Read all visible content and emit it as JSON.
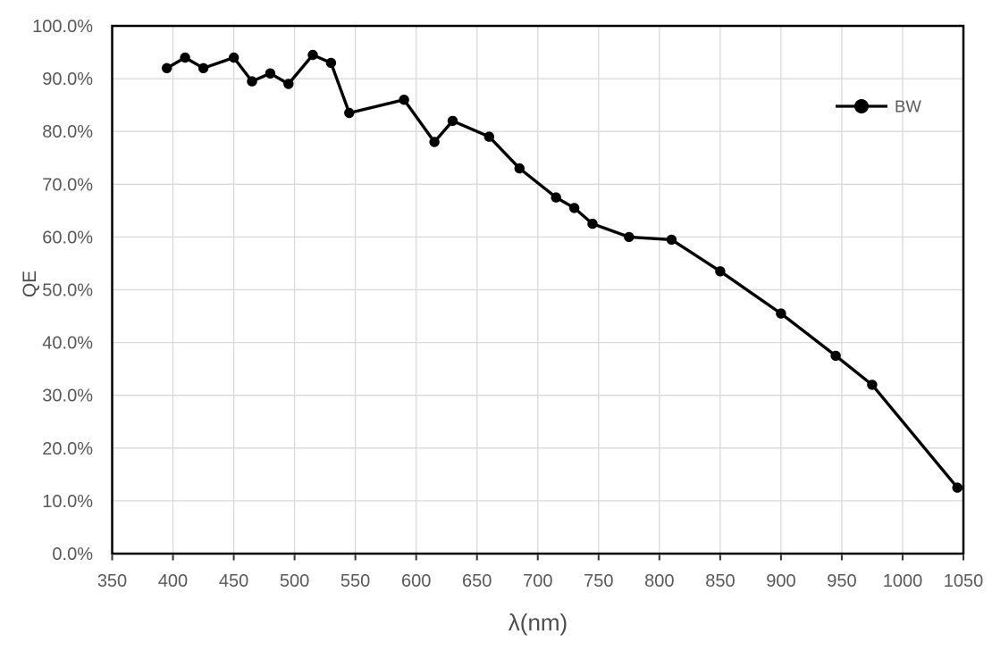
{
  "chart_data": {
    "type": "line",
    "title": "",
    "xlabel": "λ(nm)",
    "ylabel": "QE",
    "xlim": [
      350,
      1050
    ],
    "ylim": [
      0,
      100
    ],
    "x_tick_labels": [
      "350",
      "400",
      "450",
      "500",
      "550",
      "600",
      "650",
      "700",
      "750",
      "800",
      "850",
      "900",
      "950",
      "1000",
      "1050"
    ],
    "y_tick_labels": [
      "0.0%",
      "10.0%",
      "20.0%",
      "30.0%",
      "40.0%",
      "50.0%",
      "60.0%",
      "70.0%",
      "80.0%",
      "90.0%",
      "100.0%"
    ],
    "grid": true,
    "legend": {
      "position": "inside-top-right",
      "entries": [
        "BW"
      ]
    },
    "series": [
      {
        "name": "BW",
        "color": "#000000",
        "marker": "circle",
        "points": [
          [
            395,
            92.0
          ],
          [
            410,
            94.0
          ],
          [
            425,
            92.0
          ],
          [
            450,
            94.0
          ],
          [
            465,
            89.5
          ],
          [
            480,
            91.0
          ],
          [
            495,
            89.0
          ],
          [
            515,
            94.5
          ],
          [
            530,
            93.0
          ],
          [
            545,
            83.5
          ],
          [
            590,
            86.0
          ],
          [
            615,
            78.0
          ],
          [
            630,
            82.0
          ],
          [
            660,
            79.0
          ],
          [
            685,
            73.0
          ],
          [
            715,
            67.5
          ],
          [
            730,
            65.5
          ],
          [
            745,
            62.5
          ],
          [
            775,
            60.0
          ],
          [
            810,
            59.5
          ],
          [
            850,
            53.5
          ],
          [
            900,
            45.5
          ],
          [
            945,
            37.5
          ],
          [
            975,
            32.0
          ],
          [
            1045,
            12.5
          ]
        ]
      }
    ]
  },
  "colors": {
    "background": "#ffffff",
    "gridline": "#d9d9d9",
    "plot_border": "#000000",
    "tick_text": "#595959",
    "axis_title_text": "#4d4d4d",
    "legend_text": "#595959",
    "series_line": "#000000",
    "tick_mark": "#333333"
  }
}
